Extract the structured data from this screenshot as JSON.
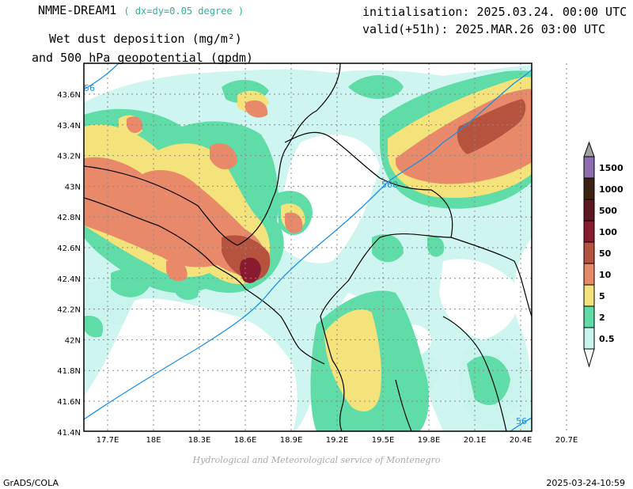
{
  "header": {
    "model": "NMME-DREAM1",
    "resolution": "( dx=dy=0.05 degree )",
    "title_line1": "Wet dust deposition (mg/m²)",
    "title_line2": "and 500 hPa geopotential (gpdm)",
    "initialisation": "initialisation: 2025.03.24. 00:00 UTC",
    "valid": "valid(+51h): 2025.MAR.26 03:00 UTC"
  },
  "axes": {
    "lat_labels": [
      "43.6N",
      "43.4N",
      "43.2N",
      "43N",
      "42.8N",
      "42.6N",
      "42.4N",
      "42.2N",
      "42N",
      "41.8N",
      "41.6N",
      "41.4N"
    ],
    "lon_labels": [
      "17.7E",
      "18E",
      "18.3E",
      "18.6E",
      "18.9E",
      "19.2E",
      "19.5E",
      "19.8E",
      "20.1E",
      "20.4E",
      "20.7E"
    ]
  },
  "contours": {
    "labels": [
      "56",
      "560",
      "56"
    ],
    "color": "#1e8fe6"
  },
  "legend": {
    "levels": [
      {
        "label": "1500",
        "color": "#8e6eb0"
      },
      {
        "label": "1000",
        "color": "#3b2314"
      },
      {
        "label": "500",
        "color": "#5e1822"
      },
      {
        "label": "100",
        "color": "#8a1a2e"
      },
      {
        "label": "50",
        "color": "#b5533f"
      },
      {
        "label": "10",
        "color": "#e8896a"
      },
      {
        "label": "5",
        "color": "#f4e27a"
      },
      {
        "label": "2",
        "color": "#5fdca8"
      },
      {
        "label": "0.5",
        "color": "#c9f4ee"
      }
    ],
    "top_color": "#a0a0a0"
  },
  "footer": {
    "credit": "Hydrological and Meteorological service of Montenegro",
    "software": "GrADS/COLA",
    "timestamp": "2025-03-24-10:59"
  }
}
